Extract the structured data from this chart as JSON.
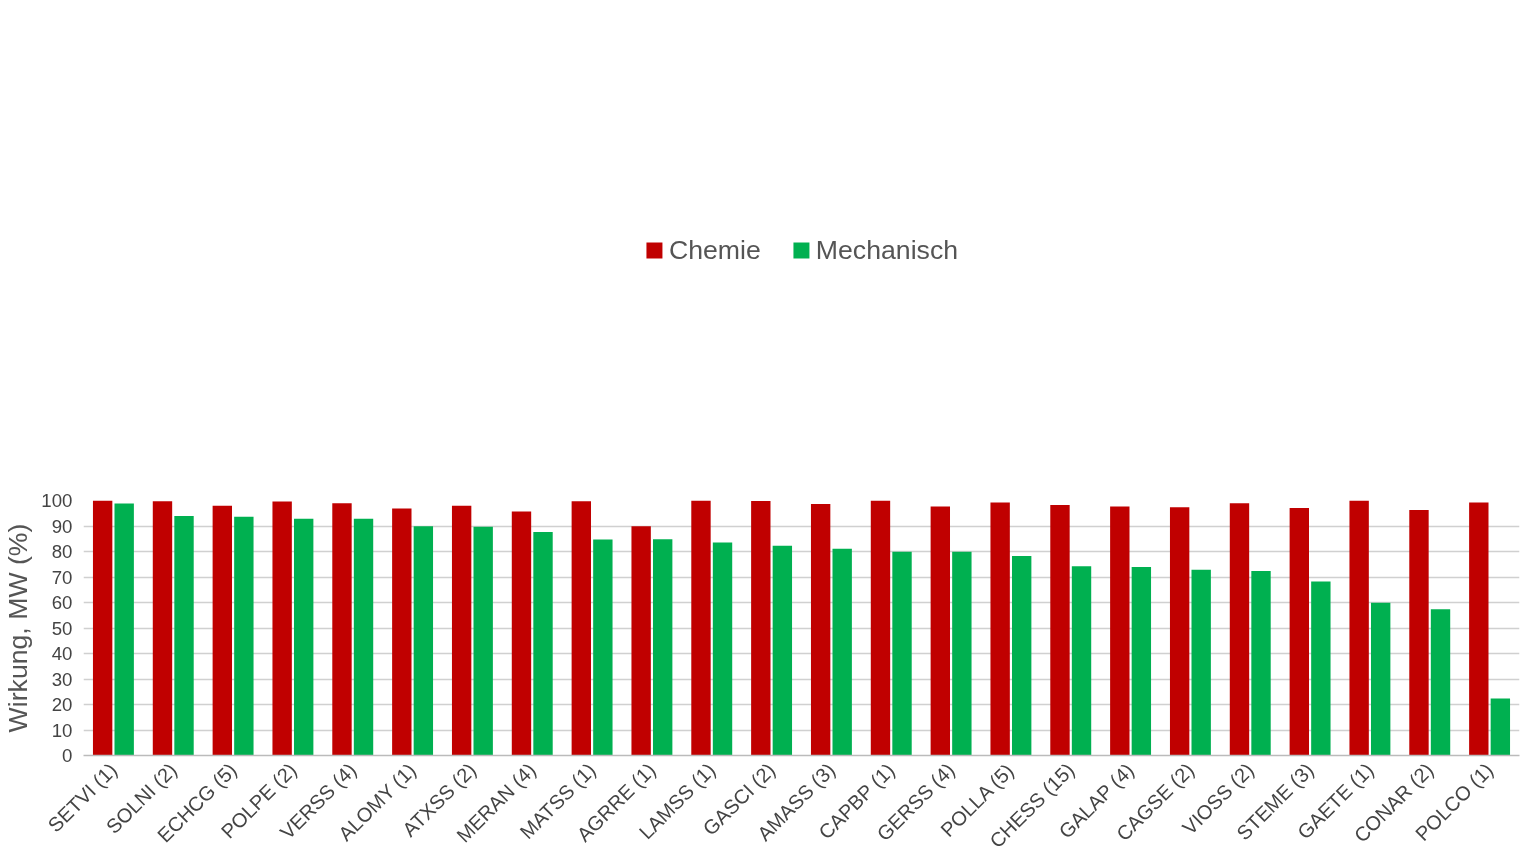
{
  "chart_data": {
    "type": "bar",
    "ylabel": "Wirkung, MW (%)",
    "categories": [
      "SETVI (1)",
      "SOLNI (2)",
      "ECHCG (5)",
      "POLPE (2)",
      "VERSS (4)",
      "ALOMY (1)",
      "ATXSS (2)",
      "MERAN (4)",
      "MATSS (1)",
      "AGRRE (1)",
      "LAMSS (1)",
      "GASCI (2)",
      "AMASS (3)",
      "CAPBP (1)",
      "GERSS (4)",
      "POLLA (5)",
      "CHESS (15)",
      "GALAP (4)",
      "CAGSE (2)",
      "VIOSS (2)",
      "STEME (3)",
      "GAETE (1)",
      "CONAR (2)",
      "POLCO (1)"
    ],
    "series": [
      {
        "name": "Chemie",
        "color": "#c00000",
        "values": [
          100,
          99.7,
          97.9,
          99.6,
          98.9,
          96.9,
          97.9,
          95.7,
          99.7,
          89.9,
          100,
          99.8,
          98.6,
          100,
          97.6,
          99.2,
          98.2,
          97.6,
          97.4,
          98.9,
          97.1,
          100,
          96.3,
          99.2
        ]
      },
      {
        "name": "Mechanisch",
        "color": "#00b050",
        "values": [
          98.8,
          93.9,
          93.6,
          92.8,
          92.8,
          89.9,
          89.7,
          87.6,
          84.7,
          84.8,
          83.5,
          82.3,
          81.1,
          79.9,
          79.9,
          78.2,
          74.2,
          73.9,
          72.8,
          72.4,
          68.2,
          59.9,
          57.4,
          22.4
        ]
      }
    ],
    "ylim": [
      0,
      100
    ],
    "yticks": [
      0,
      10,
      20,
      30,
      40,
      50,
      60,
      70,
      80,
      90,
      100
    ],
    "grid": "y",
    "legend": "top"
  }
}
